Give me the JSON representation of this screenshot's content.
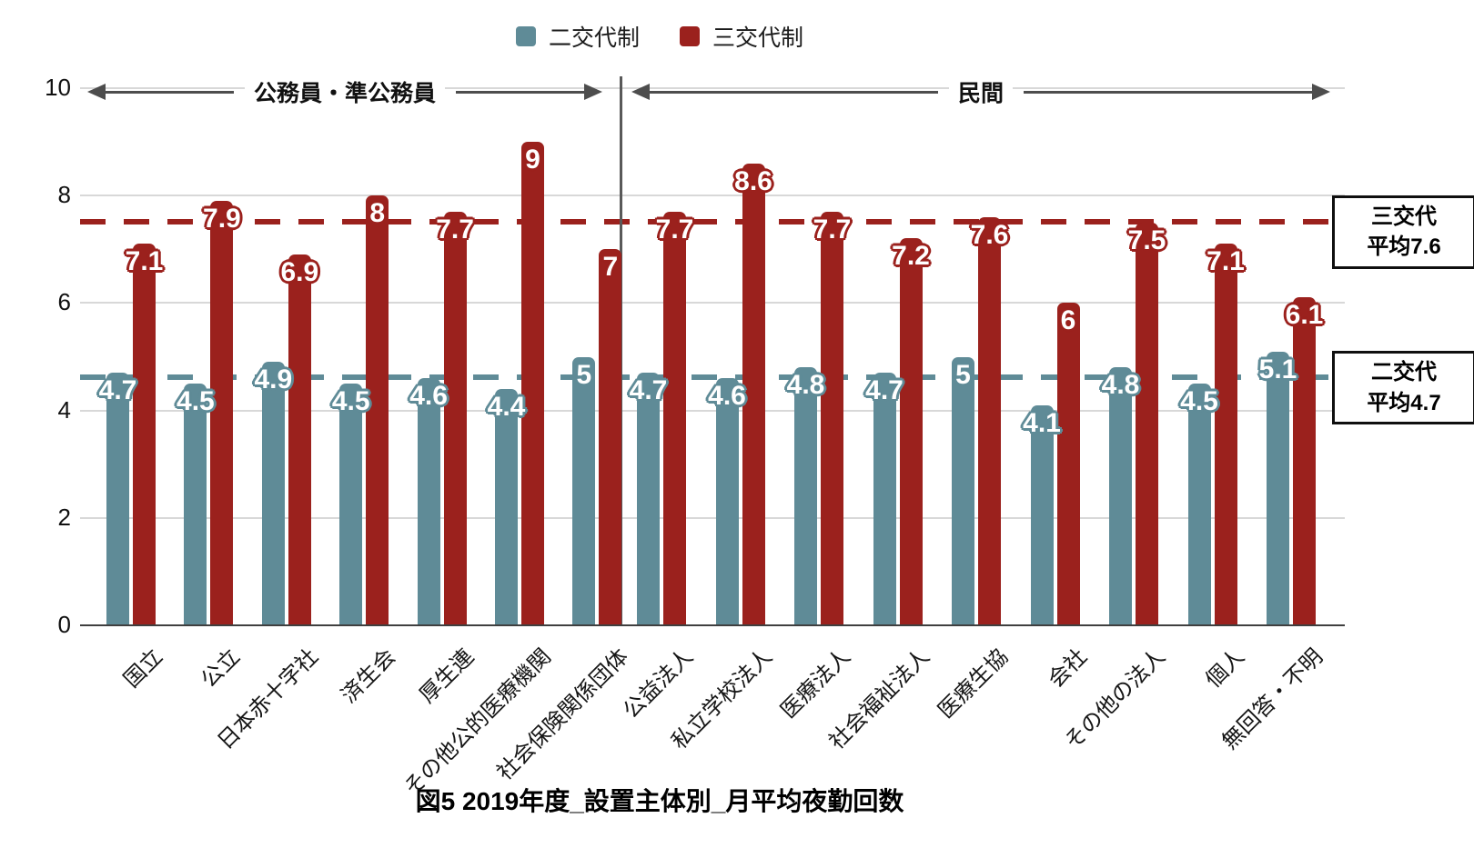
{
  "title": "図5 2019年度_設置主体別_月平均夜勤回数",
  "legend": {
    "two_shift": "二交代制",
    "three_shift": "三交代制"
  },
  "groups": [
    {
      "label": "公務員・準公務員",
      "count": 7
    },
    {
      "label": "民間",
      "count": 9
    }
  ],
  "chart_data": {
    "type": "bar",
    "title": "図5 2019年度_設置主体別_月平均夜勤回数",
    "categories": [
      "国立",
      "公立",
      "日本赤十字社",
      "済生会",
      "厚生連",
      "その他公的医療機関",
      "社会保険関係団体",
      "公益法人",
      "私立学校法人",
      "医療法人",
      "社会福祉法人",
      "医療生協",
      "会社",
      "その他の法人",
      "個人",
      "無回答・不明"
    ],
    "group_split_index": 7,
    "series": [
      {
        "name": "二交代制",
        "color": "#5f8b97",
        "values": [
          4.7,
          4.5,
          4.9,
          4.5,
          4.6,
          4.4,
          5,
          4.7,
          4.6,
          4.8,
          4.7,
          5,
          4.1,
          4.8,
          4.5,
          5.1
        ]
      },
      {
        "name": "三交代制",
        "color": "#9b211d",
        "values": [
          7.1,
          7.9,
          6.9,
          8,
          7.7,
          9,
          7,
          7.7,
          8.6,
          7.7,
          7.2,
          7.6,
          6,
          7.5,
          7.1,
          6.1
        ]
      }
    ],
    "ylim": [
      0,
      10
    ],
    "yticks": [
      0,
      2,
      4,
      6,
      8,
      10
    ],
    "grid": true,
    "legend_position": "top-center",
    "avg_lines": [
      {
        "series": "三交代制",
        "value": 7.6,
        "label_line1": "三交代",
        "label_line2": "平均7.6",
        "color": "#9b211d"
      },
      {
        "series": "二交代制",
        "value": 4.7,
        "label_line1": "二交代",
        "label_line2": "平均4.7",
        "color": "#5f8b97"
      }
    ]
  }
}
